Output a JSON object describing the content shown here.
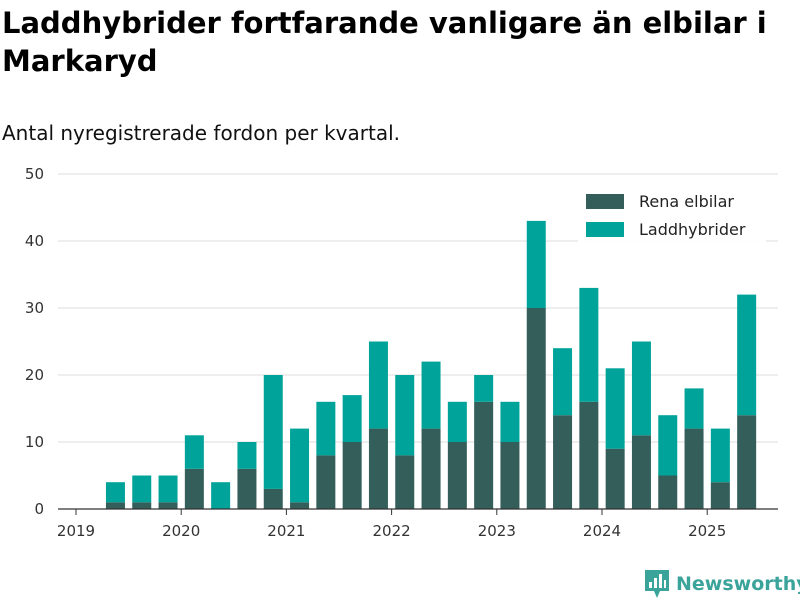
{
  "title": "Laddhybrider fortfarande vanligare än elbilar i Markaryd",
  "subtitle": "Antal nyregistrerade fordon per kvartal.",
  "brand": {
    "name": "Newsworthy",
    "icon": "newsworthy-logo-icon"
  },
  "colors": {
    "elbilar": "#345e5a",
    "laddhybrider": "#00a39a",
    "brand": "#3aa39a",
    "grid": "#dddddd"
  },
  "chart_data": {
    "type": "bar",
    "stacked": true,
    "title": "Laddhybrider fortfarande vanligare än elbilar i Markaryd",
    "subtitle": "Antal nyregistrerade fordon per kvartal.",
    "xlabel": "",
    "ylabel": "",
    "ylim": [
      0,
      50
    ],
    "yticks": [
      0,
      10,
      20,
      30,
      40,
      50
    ],
    "x_tick_labels": [
      "2019",
      "2020",
      "2021",
      "2022",
      "2023",
      "2024",
      "2025"
    ],
    "grid": true,
    "legend_position": "top-right",
    "categories": [
      "2019Q2",
      "2019Q3",
      "2019Q4",
      "2020Q1",
      "2020Q2",
      "2020Q3",
      "2020Q4",
      "2021Q1",
      "2021Q2",
      "2021Q3",
      "2021Q4",
      "2022Q1",
      "2022Q2",
      "2022Q3",
      "2022Q4",
      "2023Q1",
      "2023Q2",
      "2023Q3",
      "2023Q4",
      "2024Q1",
      "2024Q2",
      "2024Q3",
      "2024Q4",
      "2025Q1",
      "2025Q2"
    ],
    "series": [
      {
        "name": "Rena elbilar",
        "color": "#345e5a",
        "values": [
          1,
          1,
          1,
          6,
          0,
          6,
          3,
          1,
          8,
          10,
          12,
          8,
          12,
          10,
          16,
          10,
          30,
          14,
          16,
          9,
          11,
          5,
          12,
          4,
          14
        ]
      },
      {
        "name": "Laddhybrider",
        "color": "#00a39a",
        "values": [
          3,
          4,
          4,
          5,
          4,
          4,
          17,
          11,
          8,
          7,
          13,
          12,
          10,
          6,
          4,
          6,
          13,
          10,
          17,
          12,
          14,
          9,
          6,
          8,
          18
        ]
      }
    ]
  }
}
